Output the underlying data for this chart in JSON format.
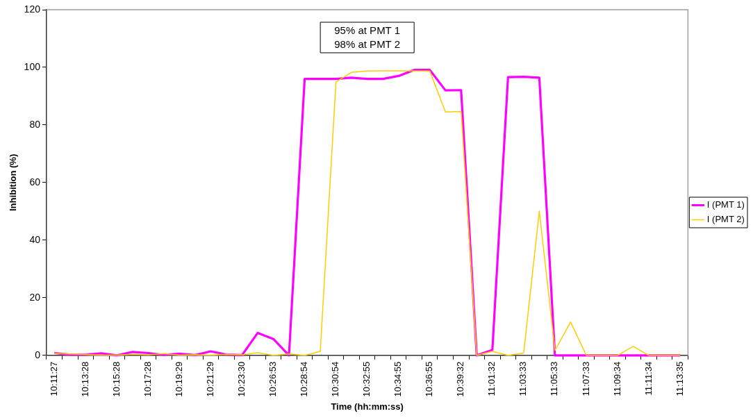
{
  "chart_data": {
    "type": "line",
    "xlabel": "Time (hh:mm:ss)",
    "ylabel": "Inhibition (%)",
    "categories": [
      "10:11:27",
      null,
      "10:13:28",
      null,
      "10:15:28",
      null,
      "10:17:28",
      null,
      "10:19:29",
      null,
      "10:21:29",
      null,
      "10:23:30",
      null,
      "10:26:53",
      null,
      "10:28:54",
      null,
      "10:30:54",
      null,
      "10:32:55",
      null,
      "10:34:55",
      null,
      "10:36:55",
      null,
      "10:39:32",
      null,
      "11:01:32",
      null,
      "11:03:33",
      null,
      "11:05:33",
      null,
      "11:07:33",
      null,
      "11:09:34",
      null,
      "11:11:34",
      null,
      "11:13:35"
    ],
    "series": [
      {
        "name": "I (PMT 1)",
        "color": "#ff00ff",
        "values": [
          0.8,
          0.3,
          0.2,
          0.7,
          0,
          1.2,
          0.8,
          0.2,
          0.6,
          0.1,
          1.4,
          0.3,
          0.1,
          7.8,
          5.7,
          0,
          96,
          96,
          96,
          96.4,
          96,
          96,
          97,
          99.1,
          99.1,
          92,
          92.1,
          0,
          1.9,
          96.6,
          96.7,
          96.4,
          0,
          0,
          0,
          0,
          0,
          0,
          0,
          0,
          0
        ]
      },
      {
        "name": "I (PMT 2)",
        "color": "#ffcc00",
        "values": [
          0.6,
          0.5,
          0.3,
          0.1,
          0.1,
          0.4,
          0.2,
          0.6,
          0.1,
          0.2,
          0.1,
          0.4,
          0.2,
          0.9,
          0,
          0.5,
          0,
          1.4,
          94.9,
          98.3,
          98.7,
          98.8,
          98.8,
          98.7,
          98.7,
          84.5,
          84.7,
          0,
          1.4,
          0,
          0.8,
          50.1,
          1.7,
          11.6,
          0,
          0,
          0,
          3.1,
          0,
          0,
          0
        ]
      }
    ],
    "ylim": [
      0,
      120
    ],
    "yticks": [
      0,
      20,
      40,
      60,
      80,
      100,
      120
    ],
    "grid": false,
    "legend": "right",
    "marker": "none",
    "line_style": "solid",
    "annotations": [
      "95% at PMT 1",
      "98% at PMT 2"
    ]
  }
}
